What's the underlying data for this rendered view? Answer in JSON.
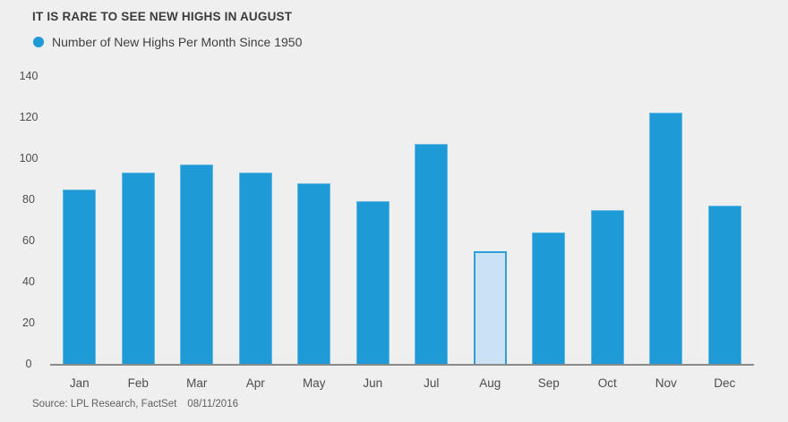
{
  "chart": {
    "title": "IT IS RARE TO SEE NEW HIGHS IN AUGUST",
    "series_label": "Number of New Highs Per Month Since 1950"
  },
  "source": {
    "text": "Source: LPL Research, FactSet",
    "date": "08/11/2016"
  },
  "colors": {
    "background": "#EFEFEF",
    "bar": "#1E9AD6",
    "bar_edge": "rgba(255,255,255,0.30)",
    "highlight_fill": "#CBE2F5",
    "highlight_border": "#2E9FD9",
    "axis_line": "#8A8A8A",
    "title_text": "#3B3B3B",
    "tick_text": "#4D4D4D",
    "source_text": "#606060"
  },
  "chart_data": {
    "type": "bar",
    "title": "IT IS RARE TO SEE NEW HIGHS IN AUGUST",
    "series_label": "Number of New Highs Per Month Since 1950",
    "categories": [
      "Jan",
      "Feb",
      "Mar",
      "Apr",
      "May",
      "Jun",
      "Jul",
      "Aug",
      "Sep",
      "Oct",
      "Nov",
      "Dec"
    ],
    "values": [
      85,
      93,
      97,
      93,
      88,
      79,
      107,
      55,
      64,
      75,
      122,
      77
    ],
    "highlighted_category": "Aug",
    "xlabel": "",
    "ylabel": "",
    "ylim": [
      0,
      140
    ],
    "ytick_step": 20,
    "grid": false,
    "legend_position": "top-left"
  }
}
